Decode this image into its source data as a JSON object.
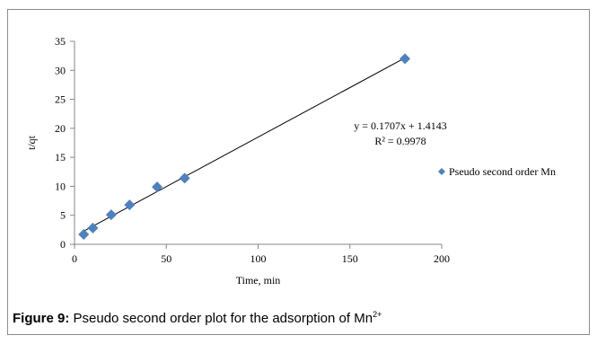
{
  "chart_data": {
    "type": "scatter",
    "xlabel": "Time, min",
    "ylabel": "t/qt",
    "xlim": [
      0,
      200
    ],
    "ylim": [
      0,
      35
    ],
    "xticks": [
      "0",
      "50",
      "100",
      "150",
      "200"
    ],
    "yticks": [
      "0",
      "5",
      "10",
      "15",
      "20",
      "25",
      "30",
      "35"
    ],
    "series": [
      {
        "name": "Pseudo second order Mn",
        "color": "#4f81bd",
        "marker": "diamond",
        "points": [
          {
            "x": 5,
            "y": 1.7
          },
          {
            "x": 10,
            "y": 2.8
          },
          {
            "x": 20,
            "y": 5.1
          },
          {
            "x": 30,
            "y": 6.8
          },
          {
            "x": 45,
            "y": 9.9
          },
          {
            "x": 60,
            "y": 11.4
          },
          {
            "x": 180,
            "y": 32.0
          }
        ]
      }
    ],
    "trendline": {
      "slope": 0.1707,
      "intercept": 1.4143,
      "x_start": 5,
      "x_end": 180,
      "equation": "y = 0.1707x + 1.4143",
      "r2_label": "R² = 0.9978"
    },
    "legend_position": "right",
    "grid": false
  },
  "caption": {
    "label": "Figure 9:",
    "text": "Pseudo second order plot for the adsorption of Mn",
    "superscript": "2+"
  }
}
